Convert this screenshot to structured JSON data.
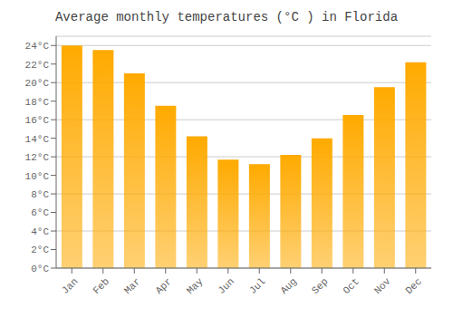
{
  "chart_data": {
    "type": "bar",
    "title": "Average monthly temperatures (°C ) in Florida",
    "categories": [
      "Jan",
      "Feb",
      "Mar",
      "Apr",
      "May",
      "Jun",
      "Jul",
      "Aug",
      "Sep",
      "Oct",
      "Nov",
      "Dec"
    ],
    "values": [
      24.0,
      23.5,
      21.0,
      17.5,
      14.2,
      11.7,
      11.2,
      12.2,
      14.0,
      16.5,
      19.5,
      22.2
    ],
    "color": "#FFAA00",
    "ylim": [
      0,
      25
    ],
    "yticks": [
      {
        "value": 0,
        "label": "0°C"
      },
      {
        "value": 2,
        "label": "2°C"
      },
      {
        "value": 4,
        "label": "4°C"
      },
      {
        "value": 6,
        "label": "6°C"
      },
      {
        "value": 8,
        "label": "8°C"
      },
      {
        "value": 10,
        "label": "10°C"
      },
      {
        "value": 12,
        "label": "12°C"
      },
      {
        "value": 14,
        "label": "14°C"
      },
      {
        "value": 16,
        "label": "16°C"
      },
      {
        "value": 18,
        "label": "18°C"
      },
      {
        "value": 20,
        "label": "20°C"
      },
      {
        "value": 22,
        "label": "22°C"
      },
      {
        "value": 24,
        "label": "24°C"
      }
    ],
    "grid": true
  }
}
